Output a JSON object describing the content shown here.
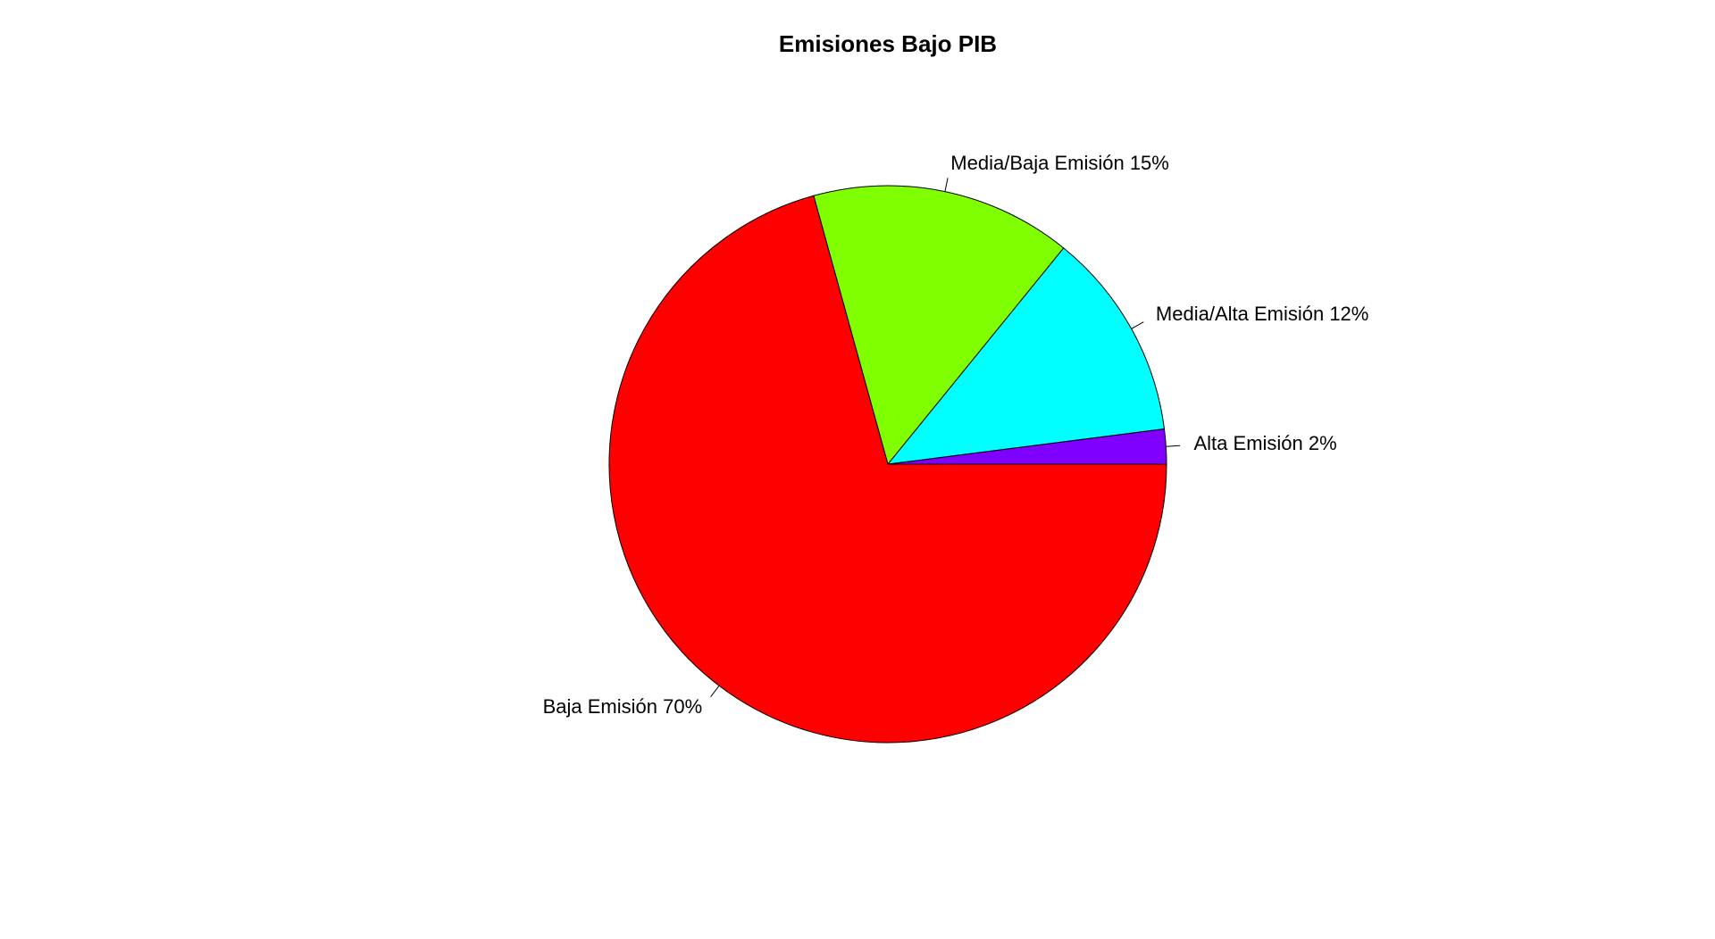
{
  "chart_data": {
    "type": "pie",
    "title": "Emisiones Bajo PIB",
    "start_angle_deg": 0,
    "direction": "counterclockwise",
    "border_color": "#000000",
    "slices": [
      {
        "label": "Alta Emisión 2%",
        "value": 2,
        "color": "#8000FF"
      },
      {
        "label": "Media/Alta Emisión 12%",
        "value": 12,
        "color": "#00FFFF"
      },
      {
        "label": "Media/Baja Emisión 15%",
        "value": 15,
        "color": "#80FF00"
      },
      {
        "label": "Baja Emisión 70%",
        "value": 70,
        "color": "#FF0000"
      }
    ]
  }
}
